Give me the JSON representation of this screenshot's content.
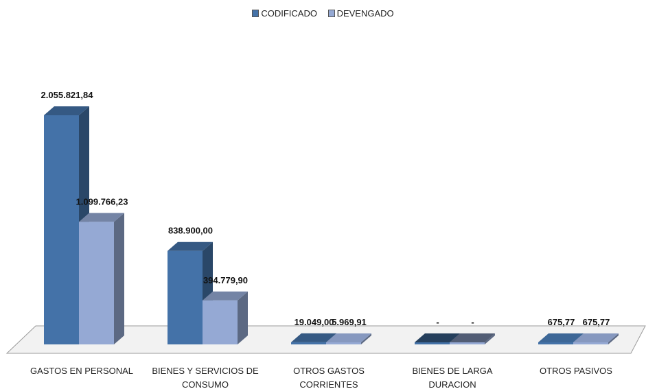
{
  "chart_data": {
    "type": "bar",
    "categories": [
      [
        "GASTOS EN PERSONAL"
      ],
      [
        "BIENES Y SERVICIOS DE",
        "CONSUMO"
      ],
      [
        "OTROS GASTOS",
        "CORRIENTES"
      ],
      [
        "BIENES DE LARGA",
        "DURACION"
      ],
      [
        "OTROS PASIVOS"
      ]
    ],
    "series": [
      {
        "name": "CODIFICADO",
        "values": [
          2055821.84,
          838900.0,
          19049.0,
          0,
          675.77
        ],
        "labels": [
          "2.055.821,84",
          "838.900,00",
          "19.049,00",
          "-",
          "675,77"
        ],
        "color": "#4472A8"
      },
      {
        "name": "DEVENGADO",
        "values": [
          1099766.23,
          394779.9,
          5969.91,
          0,
          675.77
        ],
        "labels": [
          "1.099.766,23",
          "394.779,90",
          "5.969,91",
          "-",
          "675,77"
        ],
        "color": "#95A9D4"
      }
    ],
    "ylim": [
      0,
      2055821.84
    ],
    "grid": false,
    "legend": "top-center",
    "style": "3d-column"
  }
}
